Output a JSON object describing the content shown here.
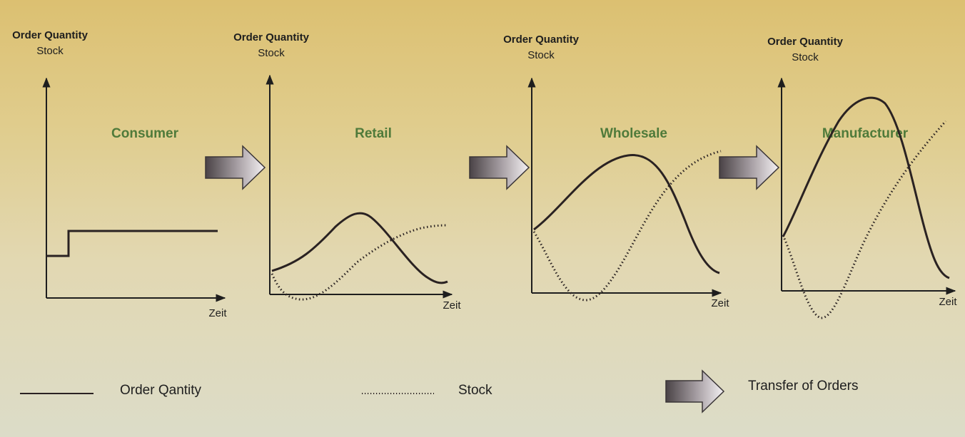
{
  "panels": [
    {
      "y_label_1": "Order Quantity",
      "y_label_2": "Stock",
      "x_label": "Zeit",
      "stage": "Consumer"
    },
    {
      "y_label_1": "Order Quantity",
      "y_label_2": "Stock",
      "x_label": "Zeit",
      "stage": "Retail"
    },
    {
      "y_label_1": "Order Quantity",
      "y_label_2": "Stock",
      "x_label": "Zeit",
      "stage": "Wholesale"
    },
    {
      "y_label_1": "Order Quantity",
      "y_label_2": "Stock",
      "x_label": "Zeit",
      "stage": "Manufacturer"
    }
  ],
  "legend": {
    "order_quantity": "Order Qantity",
    "stock": "Stock",
    "transfer": "Transfer of Orders"
  },
  "colors": {
    "stage_label": "#4f7a3a",
    "line": "#2a2222"
  }
}
